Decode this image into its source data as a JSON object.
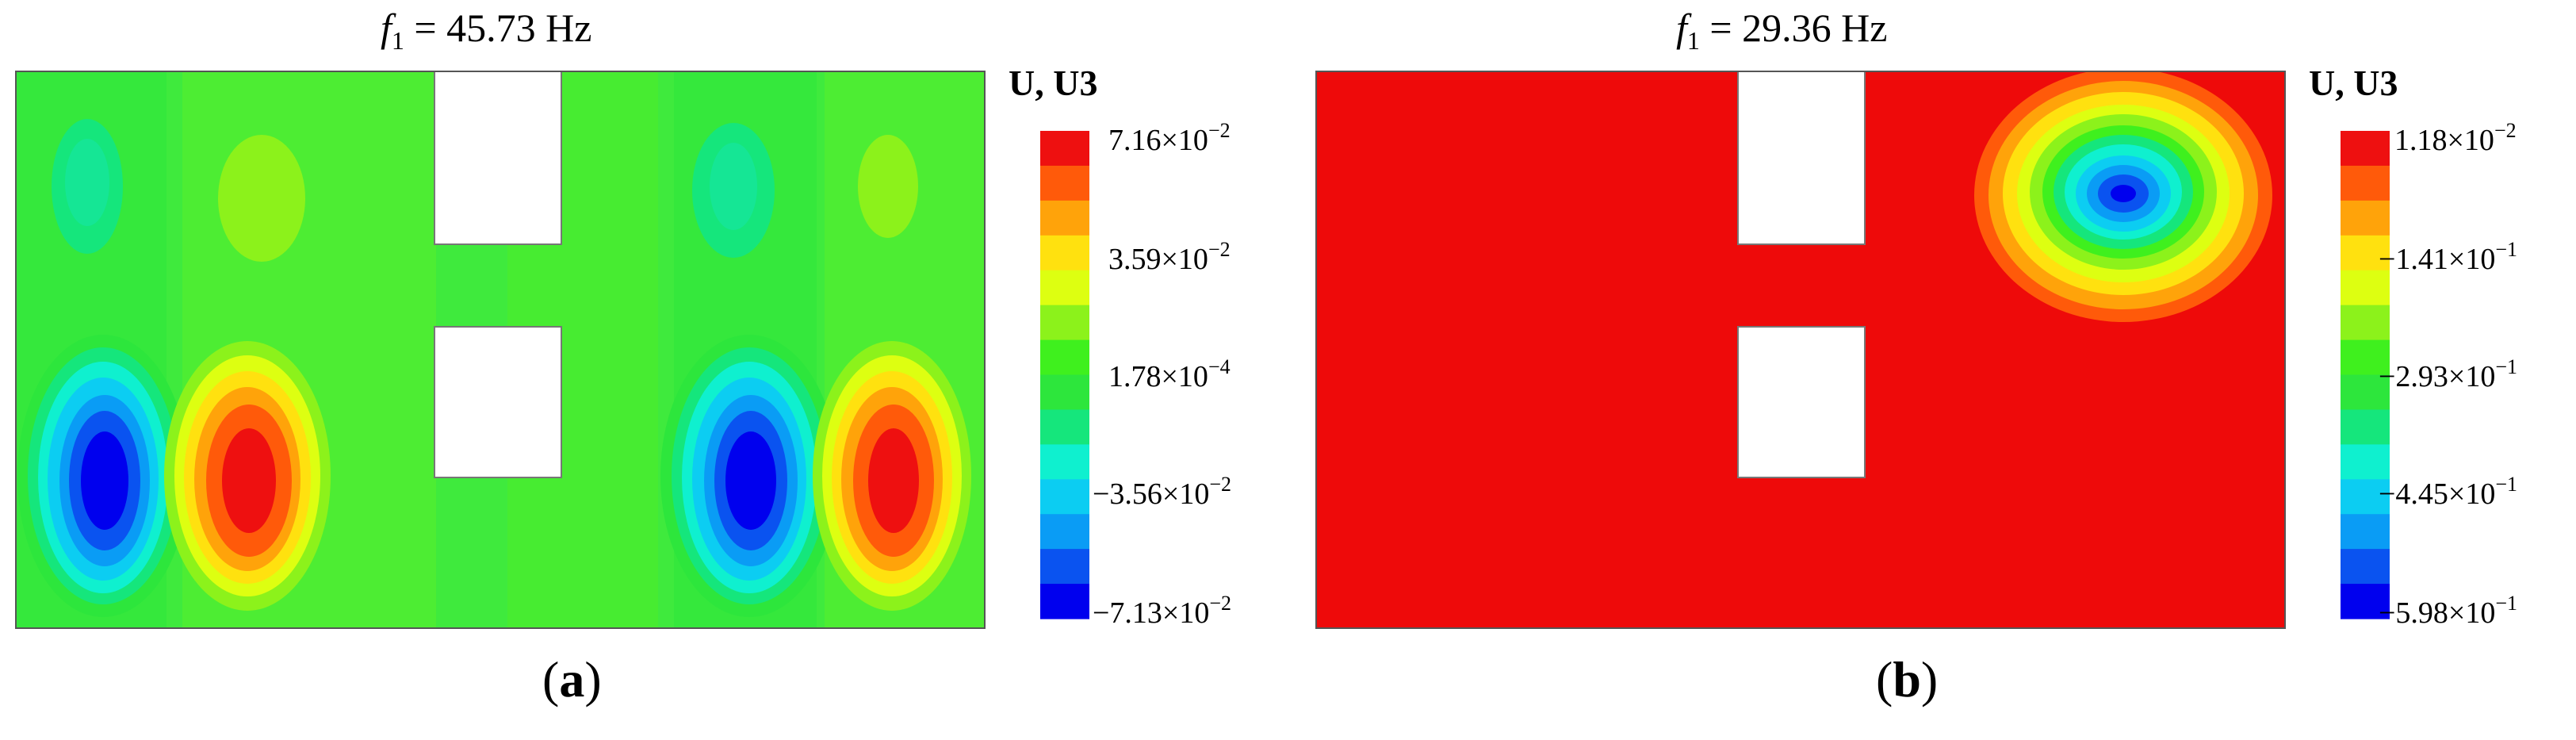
{
  "panels": [
    {
      "id": "a",
      "title_symbol": "f",
      "title_subscript": "1",
      "title_value": " = 45.73 Hz",
      "legend_title": "U, U3",
      "ticks": [
        {
          "mantissa": "7.16×10",
          "exponent": "−2"
        },
        {
          "mantissa": "3.59×10",
          "exponent": "−2"
        },
        {
          "mantissa": "1.78×10",
          "exponent": "−4"
        },
        {
          "mantissa": "−3.56×10",
          "exponent": "−2"
        },
        {
          "mantissa": "−7.13×10",
          "exponent": "−2"
        }
      ],
      "label": "a"
    },
    {
      "id": "b",
      "title_symbol": "f",
      "title_subscript": "1",
      "title_value": " = 29.36 Hz",
      "legend_title": "U, U3",
      "ticks": [
        {
          "mantissa": "1.18×10",
          "exponent": "−2"
        },
        {
          "mantissa": "−1.41×10",
          "exponent": "−1"
        },
        {
          "mantissa": "−2.93×10",
          "exponent": "−1"
        },
        {
          "mantissa": "−4.45×10",
          "exponent": "−1"
        },
        {
          "mantissa": "−5.98×10",
          "exponent": "−1"
        }
      ],
      "label": "b"
    }
  ],
  "colorbar_colors": [
    "#ee1010",
    "#ff5a0a",
    "#ffa30a",
    "#ffe10f",
    "#ddff11",
    "#8cf21b",
    "#3ff01e",
    "#2de63c",
    "#15e67c",
    "#0ff0cf",
    "#0ccdf2",
    "#0a9cf5",
    "#0a53f0",
    "#0000ee"
  ],
  "field_colors": {
    "background_a": "#3fea3d",
    "background_b": "#ee0a0a",
    "hole": "#ffffff",
    "outline": "#555555"
  }
}
